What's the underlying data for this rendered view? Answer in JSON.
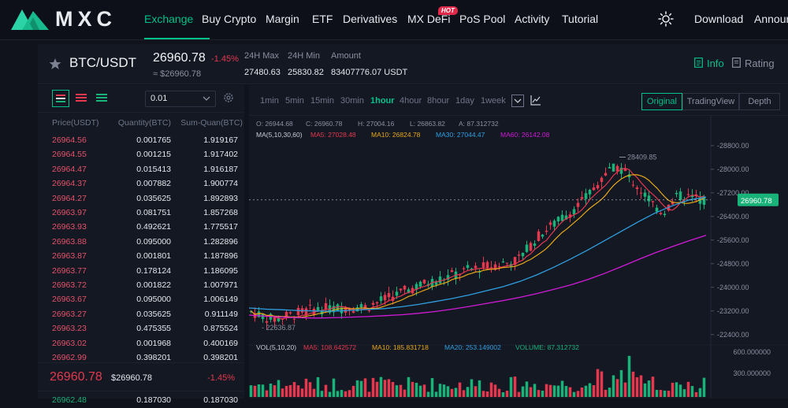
{
  "brand": {
    "name": "MXC"
  },
  "nav": {
    "items": [
      "Exchange",
      "Buy Crypto",
      "Margin",
      "ETF",
      "Derivatives",
      "MX DeFi",
      "PoS Pool",
      "Activity",
      "Tutorial"
    ],
    "hot_badge": "HOT",
    "download": "Download",
    "announcements": "Announ"
  },
  "ticker": {
    "pair": "BTC/USDT",
    "price": "26960.78",
    "change": "-1.45%",
    "approx": "≈ $26960.78",
    "stats": [
      {
        "label": "24H Max",
        "value": "27480.63"
      },
      {
        "label": "24H Min",
        "value": "25830.82"
      },
      {
        "label": "Amount",
        "value": "83407776.07 USDT"
      }
    ],
    "info": "Info",
    "rating": "Rating"
  },
  "orderbook": {
    "precision": "0.01",
    "headers": [
      "Price(USDT)",
      "Quantity(BTC)",
      "Sum-Quan(BTC)"
    ],
    "asks": [
      [
        "26964.56",
        "0.001765",
        "1.919167"
      ],
      [
        "26964.55",
        "0.001215",
        "1.917402"
      ],
      [
        "26964.47",
        "0.015413",
        "1.916187"
      ],
      [
        "26964.37",
        "0.007882",
        "1.900774"
      ],
      [
        "26964.27",
        "0.035625",
        "1.892893"
      ],
      [
        "26963.97",
        "0.081751",
        "1.857268"
      ],
      [
        "26963.93",
        "0.492621",
        "1.775517"
      ],
      [
        "26963.88",
        "0.095000",
        "1.282896"
      ],
      [
        "26963.87",
        "0.001801",
        "1.187896"
      ],
      [
        "26963.77",
        "0.178124",
        "1.186095"
      ],
      [
        "26963.72",
        "0.001822",
        "1.007971"
      ],
      [
        "26963.67",
        "0.095000",
        "1.006149"
      ],
      [
        "26963.27",
        "0.035625",
        "0.911149"
      ],
      [
        "26963.23",
        "0.475355",
        "0.875524"
      ],
      [
        "26963.02",
        "0.001968",
        "0.400169"
      ],
      [
        "26962.99",
        "0.398201",
        "0.398201"
      ]
    ],
    "last_price": "26960.78",
    "last_usd": "$26960.78",
    "last_change": "-1.45%",
    "bids": [
      [
        "26962.48",
        "0.187030",
        "0.187030"
      ]
    ]
  },
  "chart": {
    "timeframes": [
      "1min",
      "5min",
      "15min",
      "30min",
      "1hour",
      "4hour",
      "8hour",
      "1day",
      "1week"
    ],
    "active_timeframe": "1hour",
    "views": [
      "Original",
      "TradingView",
      "Depth"
    ],
    "active_view": "Original",
    "ohlc": {
      "o": "O: 26944.68",
      "c": "C: 26960.78",
      "h": "H: 27004.16",
      "l": "L: 26863.82",
      "a": "A: 87.312732"
    },
    "ma": {
      "label": "MA(5,10,30,60)",
      "ma5": "MA5: 27028.48",
      "ma10": "MA10: 26824.78",
      "ma30": "MA30: 27044.47",
      "ma60": "MA60: 26142.08"
    },
    "high_label": "28409.85",
    "low_label": "22636.87",
    "current_label": "26960.78",
    "vol": {
      "label": "VOL(5,10,20)",
      "ma5": "MA5: 108.642572",
      "ma10": "MA10: 185.831718",
      "ma20": "MA20: 253.149002",
      "volume": "VOLUME: 87.312732"
    },
    "vol_axis": [
      "600.000000",
      "300.000000"
    ],
    "colors": {
      "up": "#19b37a",
      "down": "#e5384e",
      "ma5": "#e5384e",
      "ma10": "#e6a718",
      "ma30": "#2e9fe0",
      "ma60": "#d21ad8"
    }
  },
  "chart_data": {
    "type": "candlestick",
    "yaxis": {
      "ticks": [
        28800,
        28000,
        27200,
        26400,
        25600,
        24800,
        24000,
        23200,
        22400
      ],
      "range": [
        22100,
        29250
      ]
    },
    "series": [
      {
        "name": "MA30",
        "values": [
          23300,
          23260,
          23240,
          23210,
          23200,
          23190,
          23220,
          23250,
          23280,
          23340,
          23420,
          23520,
          23620,
          23740,
          23880,
          24020,
          24200,
          24420,
          24680,
          24960,
          25260,
          25580,
          25900,
          26220,
          26520,
          26760,
          26960,
          27060
        ]
      },
      {
        "name": "MA60",
        "values": [
          23060,
          23020,
          22990,
          22970,
          22960,
          22970,
          22990,
          23010,
          23040,
          23070,
          23120,
          23180,
          23260,
          23350,
          23450,
          23550,
          23660,
          23790,
          23930,
          24080,
          24260,
          24470,
          24700,
          24940,
          25170,
          25380,
          25580,
          25760
        ]
      }
    ],
    "high": 28409.85,
    "low": 22636.87,
    "last": 26960.78
  }
}
